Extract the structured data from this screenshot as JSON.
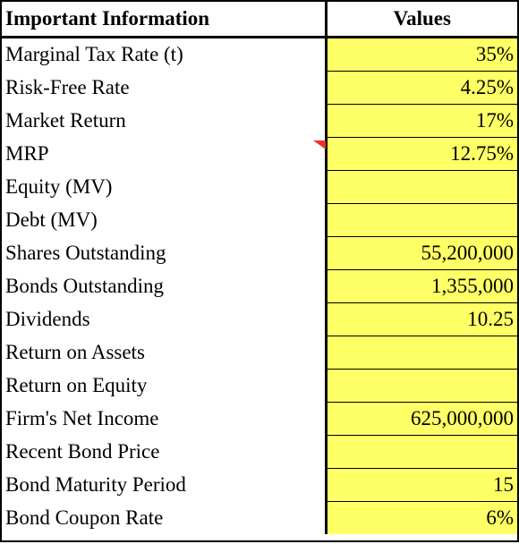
{
  "header": {
    "label": "Important Information",
    "value": "Values"
  },
  "rows": [
    {
      "label": "Marginal Tax Rate (t)",
      "value": "35%"
    },
    {
      "label": "Risk-Free Rate",
      "value": "4.25%"
    },
    {
      "label": "Market Return",
      "value": "17%"
    },
    {
      "label": "MRP",
      "value": "12.75%"
    },
    {
      "label": "Equity (MV)",
      "value": ""
    },
    {
      "label": "Debt (MV)",
      "value": ""
    },
    {
      "label": "Shares Outstanding",
      "value": "55,200,000"
    },
    {
      "label": "Bonds Outstanding",
      "value": "1,355,000"
    },
    {
      "label": "Dividends",
      "value": "10.25"
    },
    {
      "label": "Return on Assets",
      "value": ""
    },
    {
      "label": "Return on Equity",
      "value": ""
    },
    {
      "label": "Firm's Net Income",
      "value": "625,000,000"
    },
    {
      "label": "Recent Bond Price",
      "value": ""
    },
    {
      "label": "Bond Maturity Period",
      "value": "15"
    },
    {
      "label": "Bond Coupon Rate",
      "value": "6%"
    }
  ],
  "colors": {
    "value_fill": "#ffff66",
    "comment_marker": "#e8342c"
  }
}
